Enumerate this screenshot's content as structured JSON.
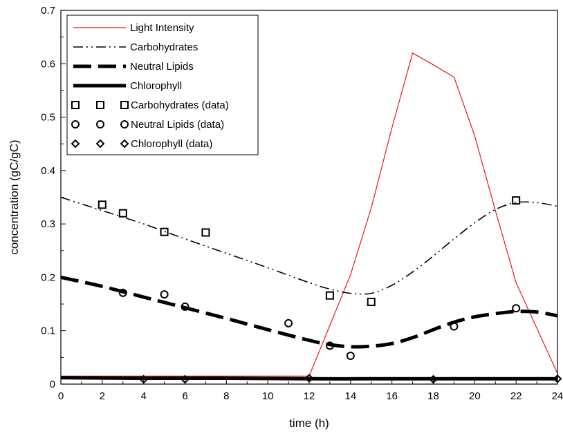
{
  "chart_data": {
    "type": "line",
    "title": "",
    "xlabel": "time (h)",
    "ylabel": "concentration (gC/gC)",
    "xlim": [
      0,
      24
    ],
    "ylim": [
      0,
      0.7
    ],
    "grid": false,
    "legend_position": "top-left",
    "x_ticks": [
      0,
      2,
      4,
      6,
      8,
      10,
      12,
      14,
      16,
      18,
      20,
      22,
      24
    ],
    "x_tick_labels": [
      "0",
      "2",
      "4",
      "6",
      "8",
      "10",
      "12",
      "14",
      "16",
      "18",
      "20",
      "22",
      "24"
    ],
    "y_ticks": [
      0,
      0.1,
      0.2,
      0.3,
      0.4,
      0.5,
      0.6,
      0.7
    ],
    "y_tick_labels": [
      "0",
      "0.1",
      "0.2",
      "0.3",
      "0.4",
      "0.5",
      "0.6",
      "0.7"
    ],
    "series": [
      {
        "name": "Light Intensity",
        "kind": "line",
        "style": "solid-thin",
        "color": "#e8141b",
        "x": [
          0,
          12,
          13,
          14,
          15,
          16,
          17,
          18,
          19,
          20,
          21,
          22,
          23,
          24
        ],
        "y": [
          0.015,
          0.015,
          0.11,
          0.205,
          0.33,
          0.48,
          0.62,
          0.598,
          0.575,
          0.465,
          0.325,
          0.19,
          0.105,
          0.02
        ]
      },
      {
        "name": "Carbohydrates",
        "kind": "line",
        "style": "dash-dot-dot",
        "color": "#000000",
        "x": [
          0,
          2,
          4,
          6,
          8,
          10,
          12,
          13,
          14,
          15,
          16,
          17,
          18,
          19,
          20,
          21,
          22,
          23,
          24
        ],
        "y": [
          0.35,
          0.325,
          0.3,
          0.272,
          0.245,
          0.218,
          0.19,
          0.178,
          0.17,
          0.17,
          0.185,
          0.21,
          0.24,
          0.272,
          0.302,
          0.327,
          0.34,
          0.34,
          0.333
        ]
      },
      {
        "name": "Neutral Lipids",
        "kind": "line",
        "style": "dashed-thick",
        "color": "#000000",
        "x": [
          0,
          2,
          4,
          6,
          8,
          10,
          12,
          13,
          14,
          15,
          16,
          17,
          18,
          19,
          20,
          21,
          22,
          23,
          24
        ],
        "y": [
          0.2,
          0.183,
          0.163,
          0.143,
          0.123,
          0.102,
          0.082,
          0.074,
          0.07,
          0.071,
          0.076,
          0.087,
          0.102,
          0.116,
          0.126,
          0.132,
          0.136,
          0.135,
          0.128
        ]
      },
      {
        "name": "Chlorophyll",
        "kind": "line",
        "style": "solid-thick",
        "color": "#000000",
        "x": [
          0,
          4,
          8,
          12,
          16,
          20,
          24
        ],
        "y": [
          0.012,
          0.011,
          0.011,
          0.01,
          0.01,
          0.01,
          0.01
        ]
      },
      {
        "name": "Carbohydrates (data)",
        "kind": "scatter",
        "marker": "square",
        "color": "#000000",
        "x": [
          2,
          3,
          5,
          7,
          13,
          15,
          22
        ],
        "y": [
          0.336,
          0.32,
          0.285,
          0.284,
          0.166,
          0.154,
          0.344
        ]
      },
      {
        "name": "Neutral Lipids (data)",
        "kind": "scatter",
        "marker": "circle",
        "color": "#000000",
        "x": [
          3,
          5,
          6,
          11,
          13,
          14,
          19,
          22
        ],
        "y": [
          0.171,
          0.168,
          0.145,
          0.114,
          0.072,
          0.053,
          0.108,
          0.142
        ]
      },
      {
        "name": "Chlorophyll (data)",
        "kind": "scatter",
        "marker": "diamond",
        "color": "#000000",
        "x": [
          4,
          6,
          12,
          18,
          24
        ],
        "y": [
          0.009,
          0.009,
          0.011,
          0.009,
          0.01
        ]
      }
    ]
  }
}
